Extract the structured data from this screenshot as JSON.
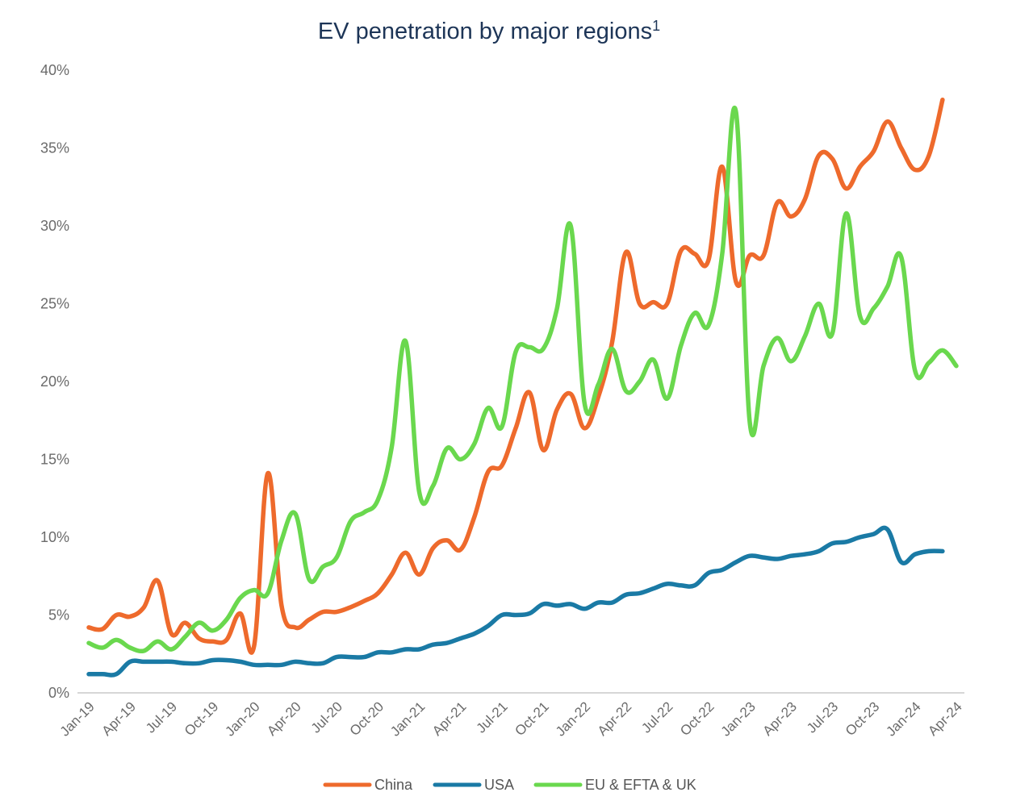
{
  "chart_data": {
    "type": "line",
    "title": "EV penetration by major regions",
    "title_superscript": "1",
    "xlabel": "",
    "ylabel": "",
    "ylim": [
      0,
      40
    ],
    "yticks": [
      0,
      5,
      10,
      15,
      20,
      25,
      30,
      35,
      40
    ],
    "ytick_labels": [
      "0%",
      "5%",
      "10%",
      "15%",
      "20%",
      "25%",
      "30%",
      "35%",
      "40%"
    ],
    "x_tick_labels": [
      "Jan-19",
      "Apr-19",
      "Jul-19",
      "Oct-19",
      "Jan-20",
      "Apr-20",
      "Jul-20",
      "Oct-20",
      "Jan-21",
      "Apr-21",
      "Jul-21",
      "Oct-21",
      "Jan-22",
      "Apr-22",
      "Jul-22",
      "Oct-22",
      "Jan-23",
      "Apr-23",
      "Jul-23",
      "Oct-23",
      "Jan-24",
      "Apr-24"
    ],
    "grid": false,
    "legend_position": "bottom",
    "series": [
      {
        "name": "China",
        "color": "#ee6a2c",
        "values": [
          4.2,
          4.1,
          5.0,
          4.9,
          5.5,
          7.2,
          3.8,
          4.5,
          3.5,
          3.3,
          3.4,
          5.1,
          3.0,
          14.1,
          5.6,
          4.2,
          4.7,
          5.2,
          5.2,
          5.5,
          5.9,
          6.4,
          7.6,
          9.0,
          7.6,
          9.3,
          9.8,
          9.2,
          11.3,
          14.2,
          14.6,
          17.0,
          19.3,
          15.6,
          18.2,
          19.2,
          17.0,
          19.0,
          22.5,
          28.3,
          25.0,
          25.1,
          25.0,
          28.4,
          28.2,
          27.8,
          33.8,
          26.4,
          28.1,
          28.1,
          31.5,
          30.6,
          31.7,
          34.5,
          34.3,
          32.4,
          33.8,
          34.8,
          36.7,
          35.0,
          33.6,
          34.5,
          38.1
        ]
      },
      {
        "name": "USA",
        "color": "#1a7aa5",
        "values": [
          1.2,
          1.2,
          1.2,
          2.0,
          2.0,
          2.0,
          2.0,
          1.9,
          1.9,
          2.1,
          2.1,
          2.0,
          1.8,
          1.8,
          1.8,
          2.0,
          1.9,
          1.9,
          2.3,
          2.3,
          2.3,
          2.6,
          2.6,
          2.8,
          2.8,
          3.1,
          3.2,
          3.5,
          3.8,
          4.3,
          5.0,
          5.0,
          5.1,
          5.7,
          5.6,
          5.7,
          5.4,
          5.8,
          5.8,
          6.3,
          6.4,
          6.7,
          7.0,
          6.9,
          6.9,
          7.7,
          7.9,
          8.4,
          8.8,
          8.7,
          8.6,
          8.8,
          8.9,
          9.1,
          9.6,
          9.7,
          10.0,
          10.2,
          10.5,
          8.4,
          8.9,
          9.1,
          9.1
        ]
      },
      {
        "name": "EU & EFTA & UK",
        "color": "#6ad84e",
        "values": [
          3.2,
          2.9,
          3.4,
          2.9,
          2.7,
          3.3,
          2.8,
          3.6,
          4.5,
          4.0,
          4.7,
          6.1,
          6.6,
          6.4,
          9.8,
          11.5,
          7.3,
          8.1,
          8.7,
          11.0,
          11.6,
          12.4,
          15.8,
          22.6,
          12.9,
          13.3,
          15.7,
          15.0,
          16.0,
          18.3,
          17.1,
          21.9,
          22.2,
          22.1,
          24.7,
          30.0,
          18.6,
          19.8,
          22.1,
          19.4,
          20.0,
          21.4,
          18.9,
          22.3,
          24.4,
          23.6,
          28.2,
          37.3,
          17.4,
          21.0,
          22.8,
          21.3,
          22.9,
          25.0,
          23.1,
          30.8,
          24.2,
          24.7,
          26.1,
          28.0,
          20.7,
          21.2,
          22.0,
          21.0
        ]
      }
    ]
  }
}
